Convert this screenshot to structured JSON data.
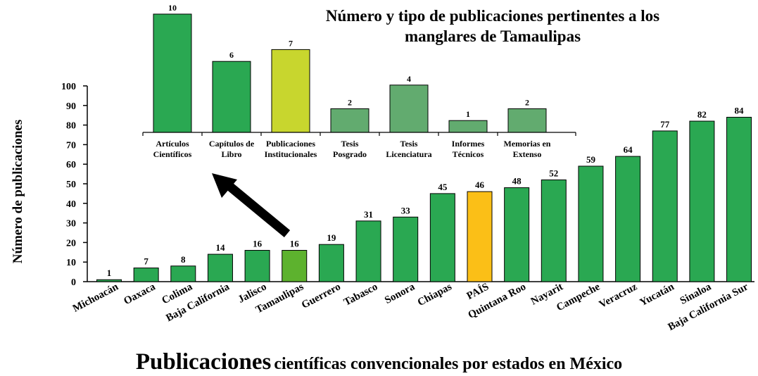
{
  "chart_data": [
    {
      "type": "bar",
      "title_big": "Publicaciones",
      "title_small": "científicas convencionales por estados en México",
      "ylabel": "Número de publicaciones",
      "ylim": [
        0,
        100
      ],
      "yticks": [
        "0",
        "10",
        "20",
        "30",
        "40",
        "50",
        "60",
        "70",
        "80",
        "90",
        "100"
      ],
      "categories": [
        "Michoacán",
        "Oaxaca",
        "Colima",
        "Baja California",
        "Jalisco",
        "Tamaulipas",
        "Guerrero",
        "Tabasco",
        "Sonora",
        "Chiapas",
        "PAÍS",
        "Quintana Roo",
        "Nayarit",
        "Campeche",
        "Veracruz",
        "Yucatán",
        "Sinaloa",
        "Baja California Sur"
      ],
      "values": [
        1,
        7,
        8,
        14,
        16,
        16,
        19,
        31,
        33,
        45,
        46,
        48,
        52,
        59,
        64,
        77,
        82,
        84
      ],
      "value_labels": [
        "1",
        "7",
        "8",
        "14",
        "16",
        "16",
        "19",
        "31",
        "33",
        "45",
        "46",
        "48",
        "52",
        "59",
        "64",
        "77",
        "82",
        "84"
      ],
      "colors": [
        "#2aa852",
        "#2aa852",
        "#2aa852",
        "#2aa852",
        "#2aa852",
        "#5db22e",
        "#2aa852",
        "#2aa852",
        "#2aa852",
        "#2aa852",
        "#fbbf17",
        "#2aa852",
        "#2aa852",
        "#2aa852",
        "#2aa852",
        "#2aa852",
        "#2aa852",
        "#2aa852"
      ],
      "grid": false
    },
    {
      "type": "bar",
      "title": "Número y tipo de publicaciones pertinentes a los manglares de Tamaulipas",
      "ylim": [
        0,
        10
      ],
      "categories": [
        [
          "Artículos",
          "Científicos"
        ],
        [
          "Capítulos de",
          "Libro"
        ],
        [
          "Publicaciones",
          "Institucionales"
        ],
        [
          "Tesis",
          "Posgrado"
        ],
        [
          "Tesis",
          "Licenciatura"
        ],
        [
          "Informes",
          "Técnicos"
        ],
        [
          "Memorias en",
          "Extenso"
        ]
      ],
      "values": [
        10,
        6,
        7,
        2,
        4,
        1,
        2
      ],
      "value_labels": [
        "10",
        "6",
        "7",
        "2",
        "4",
        "1",
        "2"
      ],
      "colors": [
        "#2aa852",
        "#2aa852",
        "#c8d62e",
        "#62ab6f",
        "#62ab6f",
        "#62ab6f",
        "#62ab6f"
      ],
      "grid": false
    }
  ]
}
